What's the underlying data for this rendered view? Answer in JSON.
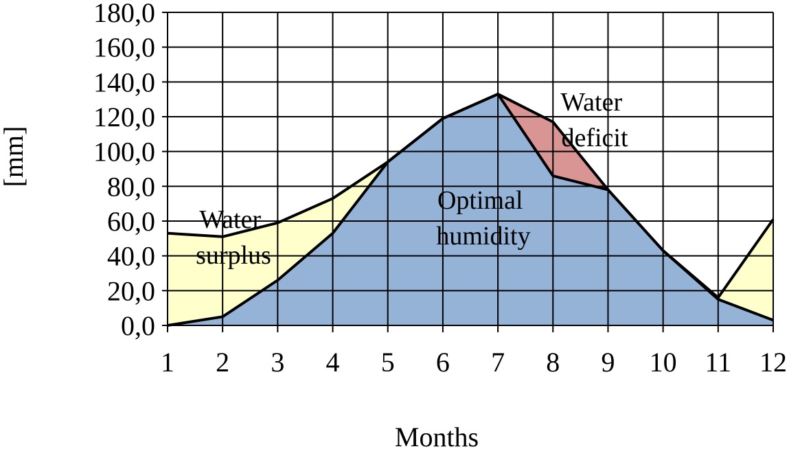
{
  "chart_data": {
    "type": "area",
    "xlabel": "Months",
    "ylabel": "[mm]",
    "x": [
      1,
      2,
      3,
      4,
      5,
      6,
      7,
      8,
      9,
      10,
      11,
      12
    ],
    "ylim": [
      0,
      180
    ],
    "y_ticks": [
      "0,0",
      "20,0",
      "40,0",
      "60,0",
      "80,0",
      "100,0",
      "120,0",
      "140,0",
      "160,0",
      "180,0"
    ],
    "x_ticks": [
      "1",
      "2",
      "3",
      "4",
      "5",
      "6",
      "7",
      "8",
      "9",
      "10",
      "11",
      "12"
    ],
    "series": [
      {
        "values": [
          53,
          51,
          59,
          73,
          94,
          119,
          133,
          117,
          78,
          43,
          16,
          61
        ]
      },
      {
        "values": [
          0,
          5,
          26,
          53,
          94,
          119,
          133,
          86,
          78,
          43,
          15,
          3
        ]
      }
    ],
    "regions": [
      {
        "label_lines": [
          "Water",
          "surplus"
        ],
        "color": "#FFFFCC"
      },
      {
        "label_lines": [
          "Optimal",
          "humidity"
        ],
        "color": "#95B3D7"
      },
      {
        "label_lines": [
          "Water",
          "deficit"
        ],
        "color": "#D99594"
      }
    ],
    "grid": true
  }
}
